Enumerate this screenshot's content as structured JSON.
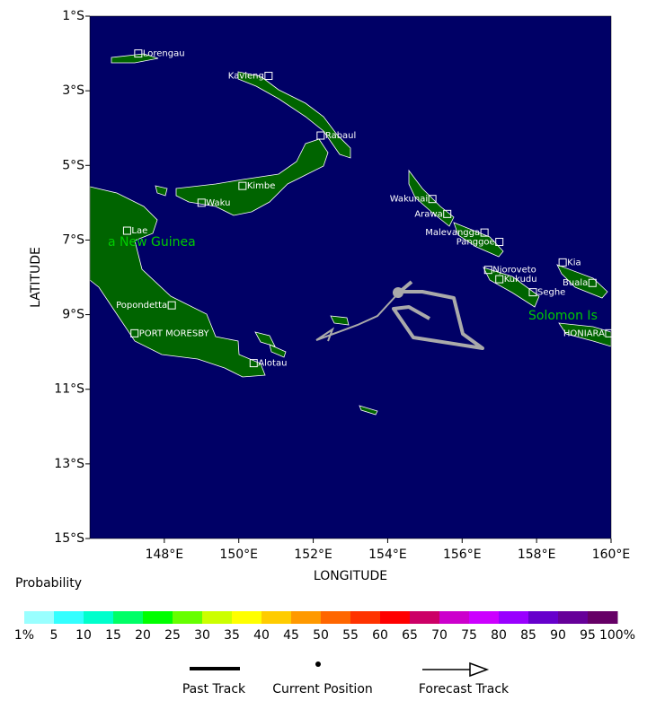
{
  "map": {
    "xlim": [
      146,
      160
    ],
    "ylim": [
      -15,
      -1
    ],
    "xlabel": "LONGITUDE",
    "ylabel": "LATITUDE",
    "xticks": [
      {
        "value": 148,
        "label": "148°E"
      },
      {
        "value": 150,
        "label": "150°E"
      },
      {
        "value": 152,
        "label": "152°E"
      },
      {
        "value": 154,
        "label": "154°E"
      },
      {
        "value": 156,
        "label": "156°E"
      },
      {
        "value": 158,
        "label": "158°E"
      },
      {
        "value": 160,
        "label": "160°E"
      }
    ],
    "yticks": [
      {
        "value": -1,
        "label": "1°S"
      },
      {
        "value": -3,
        "label": "3°S"
      },
      {
        "value": -5,
        "label": "5°S"
      },
      {
        "value": -7,
        "label": "7°S"
      },
      {
        "value": -9,
        "label": "9°S"
      },
      {
        "value": -11,
        "label": "11°S"
      },
      {
        "value": -13,
        "label": "13°S"
      },
      {
        "value": -15,
        "label": "15°S"
      }
    ],
    "regions": [
      "a New Guinea",
      "Solomon Is"
    ],
    "cities": [
      {
        "name": "Lorengau",
        "lon": 147.3,
        "lat": -2.0
      },
      {
        "name": "Kavieng",
        "lon": 150.8,
        "lat": -2.6
      },
      {
        "name": "Rabaul",
        "lon": 152.2,
        "lat": -4.2
      },
      {
        "name": "Kimbe",
        "lon": 150.1,
        "lat": -5.55
      },
      {
        "name": "Waku",
        "lon": 149.0,
        "lat": -6.0
      },
      {
        "name": "Lae",
        "lon": 147.0,
        "lat": -6.75
      },
      {
        "name": "Popondetta",
        "lon": 148.2,
        "lat": -8.75
      },
      {
        "name": "PORT MORESBY",
        "lon": 147.2,
        "lat": -9.5
      },
      {
        "name": "Alotau",
        "lon": 150.4,
        "lat": -10.3
      },
      {
        "name": "Wakunai",
        "lon": 155.2,
        "lat": -5.9
      },
      {
        "name": "Arawa",
        "lon": 155.6,
        "lat": -6.3
      },
      {
        "name": "Malevangga",
        "lon": 156.6,
        "lat": -6.8
      },
      {
        "name": "Panggoe",
        "lon": 157.0,
        "lat": -7.05
      },
      {
        "name": "Njoroveto",
        "lon": 156.7,
        "lat": -7.8
      },
      {
        "name": "Kukudu",
        "lon": 157.0,
        "lat": -8.05
      },
      {
        "name": "Seghe",
        "lon": 157.9,
        "lat": -8.4
      },
      {
        "name": "Kia",
        "lon": 158.7,
        "lat": -7.6
      },
      {
        "name": "Buala",
        "lon": 159.5,
        "lat": -8.15
      },
      {
        "name": "HONIARA",
        "lon": 159.95,
        "lat": -9.5
      }
    ]
  },
  "colorbar": {
    "title": "Probability",
    "colors": [
      "#99ffff",
      "#33ffff",
      "#00ffcc",
      "#00ff66",
      "#00ff00",
      "#66ff00",
      "#ccff00",
      "#ffff00",
      "#ffcc00",
      "#ff9900",
      "#ff6600",
      "#ff3300",
      "#ff0000",
      "#cc0066",
      "#cc00cc",
      "#cc00ff",
      "#9900ff",
      "#6600cc",
      "#660099",
      "#660066"
    ],
    "labels": [
      "1%",
      "5",
      "10",
      "15",
      "20",
      "25",
      "30",
      "35",
      "40",
      "45",
      "50",
      "55",
      "60",
      "65",
      "70",
      "75",
      "80",
      "85",
      "90",
      "95",
      "100%"
    ]
  },
  "legend": [
    "Past Track",
    "Current Position",
    "Forecast Track"
  ]
}
